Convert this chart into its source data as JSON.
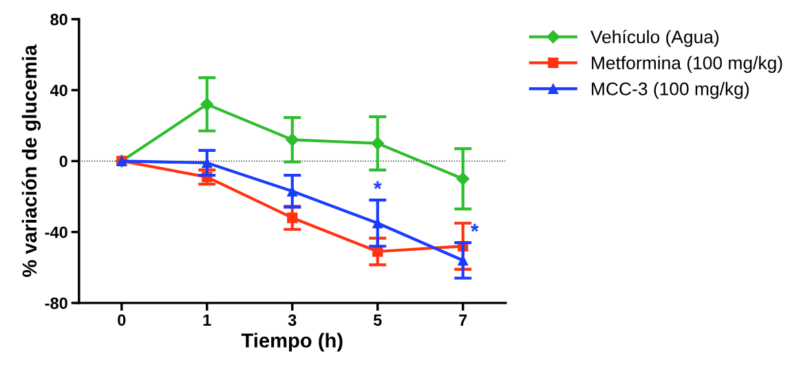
{
  "chart_data": {
    "type": "line",
    "xlabel": "Tiempo (h)",
    "ylabel": "% variación de glucemia",
    "categories": [
      "0",
      "1",
      "3",
      "5",
      "7"
    ],
    "series": [
      {
        "name": "Vehículo (Agua)",
        "color": "#2dbd2d",
        "marker": "diamond",
        "values": [
          0,
          32,
          12,
          10,
          -10
        ],
        "errors": [
          null,
          15,
          12.5,
          15,
          17
        ]
      },
      {
        "name": "Metformina (100 mg/kg)",
        "color": "#ff3311",
        "marker": "square",
        "values": [
          0,
          -9,
          -32,
          -51,
          -48
        ],
        "errors": [
          null,
          4,
          6.5,
          7.5,
          13
        ]
      },
      {
        "name": "MCC-3 (100 mg/kg)",
        "color": "#1a3cff",
        "marker": "triangle",
        "values": [
          0,
          -1,
          -17,
          -35,
          -56
        ],
        "errors": [
          null,
          7,
          9,
          13,
          10
        ]
      }
    ],
    "ylim": [
      -80,
      80
    ],
    "yticks": [
      -80,
      -40,
      0,
      40,
      80
    ],
    "ref_lines": [
      {
        "axis": "y",
        "value": 0,
        "color": "#000000",
        "line_style": "dotted"
      }
    ],
    "annotations": [
      {
        "text": "*",
        "x": "5",
        "y": -22
      },
      {
        "text": "*",
        "x": "7",
        "y": -46
      }
    ],
    "legend": "right",
    "grid": false
  }
}
